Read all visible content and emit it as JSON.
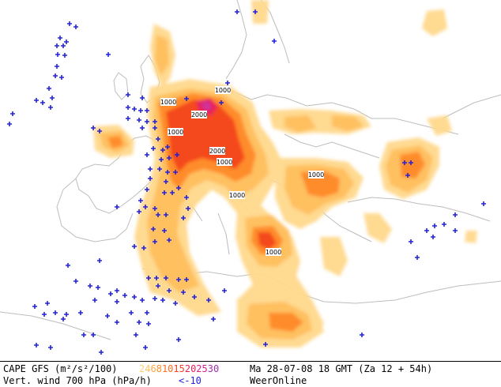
{
  "legend": {
    "line1_title": "CAPE GFS (m²/s²/100)",
    "line2_title": "Vert. wind 700 hPa (hPa/h)",
    "cape_levels": [
      {
        "label": "2",
        "color": "#ffd27a"
      },
      {
        "label": "4",
        "color": "#ffc05a"
      },
      {
        "label": "6",
        "color": "#ffa840"
      },
      {
        "label": "8",
        "color": "#ff8c28"
      },
      {
        "label": "10",
        "color": "#ff6a1c"
      },
      {
        "label": "15",
        "color": "#f84020"
      },
      {
        "label": "20",
        "color": "#e8205a"
      },
      {
        "label": "25",
        "color": "#d0208c"
      },
      {
        "label": "30",
        "color": "#a030b0"
      }
    ],
    "wind_threshold": "<-10",
    "wind_color": "#2222dd",
    "valid_time": "Ma 28-07-08 18 GMT (Za 12 + 54h)",
    "source": "WeerOnline"
  },
  "map": {
    "contour_labels": [
      "1000",
      "1000",
      "2000",
      "1000",
      "2000",
      "1000",
      "1000",
      "1000",
      "1000"
    ],
    "land_border_color": "#bdbdbd"
  }
}
